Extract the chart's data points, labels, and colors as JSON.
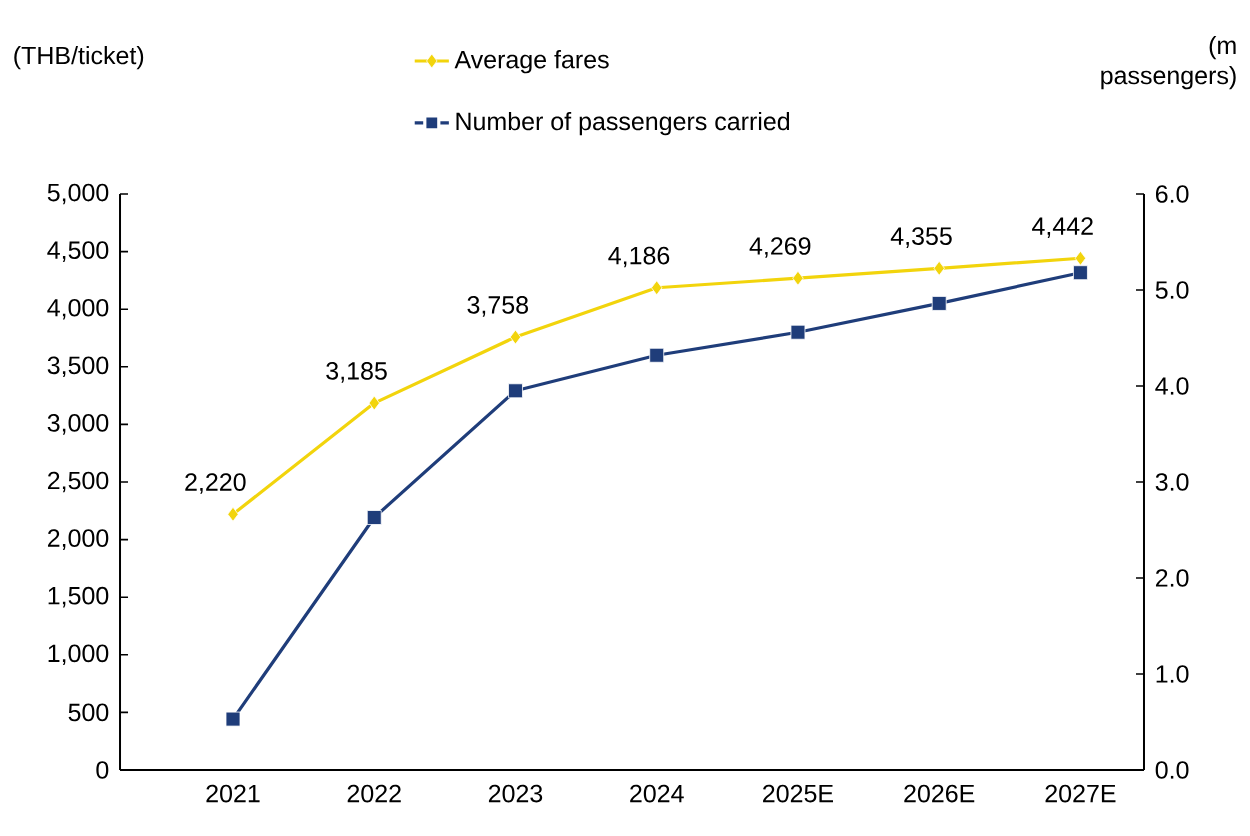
{
  "chart_data": {
    "type": "line",
    "ylabel": "(THB/ticket)",
    "y2label": "(m passengers)",
    "categories": [
      "2021",
      "2022",
      "2023",
      "2024",
      "2025E",
      "2026E",
      "2027E"
    ],
    "series": [
      {
        "name": "Average fares",
        "color": "#f2d40c",
        "marker": "diamond",
        "values": [
          2220,
          3185,
          3758,
          4186,
          4269,
          4355,
          4442
        ],
        "value_labels": [
          "2,220",
          "3,185",
          "3,758",
          "4,186",
          "4,269",
          "4,355",
          "4,442"
        ]
      },
      {
        "name": "Number of passengers carried",
        "color": "#1f3d7a",
        "marker": "square",
        "axis": "y2",
        "values": [
          0.53,
          2.63,
          3.95,
          4.32,
          4.56,
          4.86,
          5.18
        ]
      }
    ],
    "ylim": [
      0,
      5000
    ],
    "yticks": [
      0,
      {
        "value": 500,
        "label": "500"
      },
      {
        "value": 1000,
        "label": "1,000"
      },
      {
        "value": 1500,
        "label": "1,500"
      },
      {
        "value": 2000,
        "label": "2,000"
      },
      {
        "value": 2500,
        "label": "2,500"
      },
      {
        "value": 3000,
        "label": "3,000"
      },
      {
        "value": 3500,
        "label": "3,500"
      },
      {
        "value": 4000,
        "label": "4,000"
      },
      {
        "value": 4500,
        "label": "4,500"
      },
      {
        "value": 5000,
        "label": "5,000"
      }
    ],
    "y2lim": [
      0,
      6
    ],
    "y2ticks": [
      {
        "value": 0,
        "label": "0.0"
      },
      {
        "value": 1,
        "label": "1.0"
      },
      {
        "value": 2,
        "label": "2.0"
      },
      {
        "value": 3,
        "label": "3.0"
      },
      {
        "value": 4,
        "label": "4.0"
      },
      {
        "value": 5,
        "label": "5.0"
      },
      {
        "value": 6,
        "label": "6.0"
      }
    ],
    "legend": "top",
    "grid": false,
    "line_style": "solid"
  }
}
